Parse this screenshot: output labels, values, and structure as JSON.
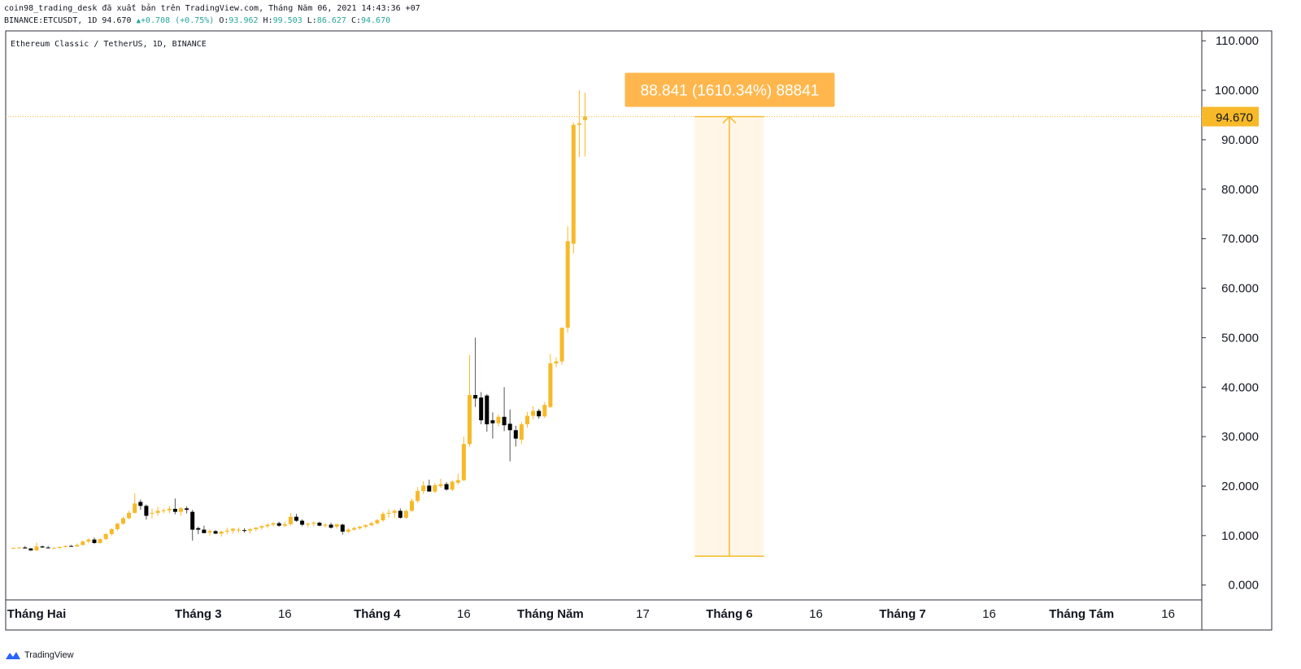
{
  "header": {
    "line1": "coin98_trading_desk đã xuất bản trên TradingView.com, Tháng Năm 06, 2021 14:43:36 +07",
    "symbol": "BINANCE:ETCUSDT, 1D 94.670",
    "change": "+0.708 (+0.75%)",
    "o_label": "O:",
    "o_value": "93.962",
    "h_label": "H:",
    "h_value": "99.503",
    "l_label": "L:",
    "l_value": "86.627",
    "c_label": "C:",
    "c_value": "94.670"
  },
  "footer": {
    "brand": "TradingView"
  },
  "colors": {
    "up": "#f7b928",
    "down": "#000000",
    "accent": "#ffb74d",
    "zone": "#fff6e8",
    "last_price_bg": "#f7b928"
  },
  "chart_data": {
    "type": "candlestick",
    "title": "Ethereum Classic / TetherUS, 1D, BINANCE",
    "ylim": [
      -3,
      112
    ],
    "y_ticks": [
      "0.000",
      "10.000",
      "20.000",
      "30.000",
      "40.000",
      "50.000",
      "60.000",
      "70.000",
      "80.000",
      "90.000",
      "100.000",
      "110.000"
    ],
    "y_tick_values": [
      0,
      10,
      20,
      30,
      40,
      50,
      60,
      70,
      80,
      90,
      100,
      110
    ],
    "last_price": {
      "label": "94.670",
      "value": 94.67
    },
    "x_labels": [
      {
        "label": "Tháng Hai",
        "x": 0,
        "bold": true
      },
      {
        "label": "Tháng 3",
        "x": 28,
        "bold": true
      },
      {
        "label": "16",
        "x": 43,
        "bold": false
      },
      {
        "label": "Tháng 4",
        "x": 59,
        "bold": true
      },
      {
        "label": "16",
        "x": 74,
        "bold": false
      },
      {
        "label": "Tháng Năm",
        "x": 89,
        "bold": true
      },
      {
        "label": "17",
        "x": 105,
        "bold": false
      },
      {
        "label": "Tháng 6",
        "x": 120,
        "bold": true
      },
      {
        "label": "16",
        "x": 135,
        "bold": false
      },
      {
        "label": "Tháng 7",
        "x": 150,
        "bold": true
      },
      {
        "label": "16",
        "x": 165,
        "bold": false
      },
      {
        "label": "Tháng Tám",
        "x": 181,
        "bold": true
      },
      {
        "label": "16",
        "x": 196,
        "bold": false
      }
    ],
    "candles": [
      [
        -4,
        7.4,
        7.6,
        7.3,
        7.5
      ],
      [
        -3,
        7.5,
        7.7,
        7.4,
        7.6
      ],
      [
        -2,
        7.6,
        7.9,
        7.5,
        7.4
      ],
      [
        -1,
        7.4,
        7.5,
        6.9,
        7.0
      ],
      [
        0,
        7.0,
        8.6,
        6.9,
        7.8
      ],
      [
        1,
        7.8,
        8.0,
        7.5,
        7.6
      ],
      [
        2,
        7.6,
        7.9,
        7.4,
        7.5
      ],
      [
        3,
        7.5,
        7.7,
        7.4,
        7.5
      ],
      [
        4,
        7.5,
        7.8,
        7.4,
        7.7
      ],
      [
        5,
        7.7,
        8.0,
        7.6,
        7.9
      ],
      [
        6,
        7.9,
        8.1,
        7.8,
        7.8
      ],
      [
        7,
        7.8,
        8.4,
        7.7,
        8.1
      ],
      [
        8,
        8.1,
        9.0,
        8.0,
        8.8
      ],
      [
        9,
        8.8,
        9.5,
        8.5,
        9.2
      ],
      [
        10,
        9.2,
        9.6,
        8.3,
        8.5
      ],
      [
        11,
        8.5,
        9.4,
        8.4,
        9.3
      ],
      [
        12,
        9.3,
        10.5,
        9.1,
        10.3
      ],
      [
        13,
        10.3,
        11.5,
        10.0,
        11.3
      ],
      [
        14,
        11.3,
        12.6,
        11.0,
        12.4
      ],
      [
        15,
        12.4,
        13.8,
        12.2,
        13.5
      ],
      [
        16,
        13.5,
        15.0,
        13.3,
        14.6
      ],
      [
        17,
        14.6,
        18.5,
        14.4,
        16.5
      ],
      [
        18,
        16.8,
        17.3,
        15.2,
        16.0
      ],
      [
        19,
        16.0,
        16.3,
        13.2,
        14.0
      ],
      [
        20,
        14.5,
        15.5,
        13.5,
        14.6
      ],
      [
        21,
        14.6,
        15.8,
        14.0,
        15.0
      ],
      [
        22,
        15.0,
        15.5,
        14.5,
        15.1
      ],
      [
        23,
        15.1,
        16.0,
        14.5,
        15.4
      ],
      [
        24,
        15.4,
        17.5,
        14.3,
        14.8
      ],
      [
        25,
        14.8,
        15.8,
        14.0,
        15.5
      ],
      [
        26,
        15.5,
        15.9,
        14.5,
        15.2
      ],
      [
        27,
        14.8,
        15.2,
        9.0,
        11.2
      ],
      [
        28,
        11.5,
        11.8,
        10.3,
        11.2
      ],
      [
        29,
        11.2,
        12.0,
        10.6,
        10.5
      ],
      [
        30,
        10.6,
        11.3,
        10.0,
        10.9
      ],
      [
        31,
        10.9,
        11.1,
        10.3,
        10.4
      ],
      [
        32,
        10.4,
        11.0,
        9.8,
        10.8
      ],
      [
        33,
        10.8,
        11.6,
        10.3,
        11.0
      ],
      [
        34,
        11.0,
        11.5,
        10.4,
        11.4
      ],
      [
        35,
        11.2,
        11.6,
        10.6,
        11.2
      ],
      [
        36,
        11.1,
        11.5,
        10.6,
        11.0
      ],
      [
        37,
        11.0,
        11.5,
        10.4,
        11.3
      ],
      [
        38,
        11.3,
        11.7,
        10.9,
        11.6
      ],
      [
        39,
        11.6,
        12.1,
        11.2,
        11.9
      ],
      [
        40,
        11.9,
        12.5,
        11.5,
        12.2
      ],
      [
        41,
        12.2,
        12.7,
        11.9,
        12.5
      ],
      [
        42,
        12.5,
        12.8,
        11.8,
        12.0
      ],
      [
        43,
        12.0,
        12.8,
        11.7,
        12.3
      ],
      [
        44,
        12.3,
        14.5,
        12.0,
        13.8
      ],
      [
        45,
        13.8,
        14.4,
        12.8,
        13.0
      ],
      [
        46,
        13.0,
        13.3,
        11.9,
        12.2
      ],
      [
        47,
        12.2,
        12.6,
        11.7,
        12.4
      ],
      [
        48,
        12.4,
        12.9,
        11.9,
        12.6
      ],
      [
        49,
        12.6,
        12.8,
        11.9,
        12.0
      ],
      [
        50,
        12.0,
        12.5,
        11.6,
        12.2
      ],
      [
        51,
        12.2,
        12.6,
        11.4,
        11.6
      ],
      [
        52,
        11.8,
        12.4,
        11.4,
        12.3
      ],
      [
        53,
        12.2,
        12.4,
        10.2,
        10.8
      ],
      [
        54,
        10.8,
        11.5,
        10.5,
        11.2
      ],
      [
        55,
        11.2,
        11.8,
        11.0,
        11.5
      ],
      [
        56,
        11.5,
        12.0,
        11.2,
        11.8
      ],
      [
        57,
        11.8,
        12.3,
        11.5,
        12.1
      ],
      [
        58,
        12.1,
        12.8,
        11.9,
        12.5
      ],
      [
        59,
        12.5,
        13.4,
        12.2,
        13.1
      ],
      [
        60,
        13.1,
        14.8,
        12.8,
        14.4
      ],
      [
        61,
        14.4,
        15.3,
        13.6,
        14.6
      ],
      [
        62,
        14.6,
        15.3,
        13.5,
        15.0
      ],
      [
        63,
        15.0,
        15.5,
        13.4,
        13.6
      ],
      [
        64,
        13.6,
        15.3,
        13.4,
        15.0
      ],
      [
        65,
        15.0,
        17.5,
        14.8,
        17.0
      ],
      [
        66,
        17.0,
        19.8,
        16.6,
        19.0
      ],
      [
        67,
        19.0,
        21.0,
        18.4,
        20.1
      ],
      [
        68,
        20.1,
        21.3,
        19.0,
        18.9
      ],
      [
        69,
        18.9,
        20.6,
        18.6,
        20.2
      ],
      [
        70,
        20.0,
        21.5,
        19.7,
        20.4
      ],
      [
        71,
        20.4,
        20.8,
        19.1,
        19.3
      ],
      [
        72,
        19.3,
        21.2,
        19.0,
        20.9
      ],
      [
        73,
        20.7,
        22.5,
        20.3,
        21.2
      ],
      [
        74,
        21.2,
        30.0,
        21.0,
        28.5
      ],
      [
        75,
        28.5,
        46.5,
        28.0,
        38.4
      ],
      [
        76,
        38.4,
        50.0,
        36.0,
        37.7
      ],
      [
        77,
        37.9,
        39.0,
        32.5,
        33.3
      ],
      [
        78,
        38.3,
        38.6,
        31.0,
        32.5
      ],
      [
        79,
        33.3,
        34.9,
        29.6,
        32.7
      ],
      [
        80,
        32.7,
        34.5,
        32.1,
        34.0
      ],
      [
        81,
        34.0,
        40.0,
        31.1,
        32.3
      ],
      [
        82,
        32.6,
        35.5,
        25.0,
        31.3
      ],
      [
        83,
        31.3,
        32.2,
        28.0,
        29.6
      ],
      [
        84,
        29.4,
        33.0,
        28.5,
        32.5
      ],
      [
        85,
        32.5,
        35.0,
        31.8,
        34.2
      ],
      [
        86,
        34.2,
        36.2,
        33.5,
        35.2
      ],
      [
        87,
        35.2,
        35.6,
        33.6,
        34.1
      ],
      [
        88,
        34.1,
        37.0,
        33.8,
        36.4
      ],
      [
        89,
        36.0,
        46.7,
        35.8,
        44.8
      ],
      [
        90,
        44.8,
        46.0,
        44.0,
        45.2
      ],
      [
        91,
        45.2,
        52.0,
        44.5,
        52.0
      ],
      [
        92,
        52.0,
        72.5,
        51.0,
        69.5
      ],
      [
        93,
        69.0,
        93.5,
        67.0,
        93.0
      ],
      [
        94,
        93.0,
        100.0,
        86.5,
        93.3
      ],
      [
        95,
        93.962,
        99.503,
        86.627,
        94.67
      ]
    ],
    "measure": {
      "label": "88.841 (1610.34%) 88841",
      "from_value": 5.83,
      "to_value": 94.67,
      "from_x": 114,
      "to_x": 126
    }
  }
}
